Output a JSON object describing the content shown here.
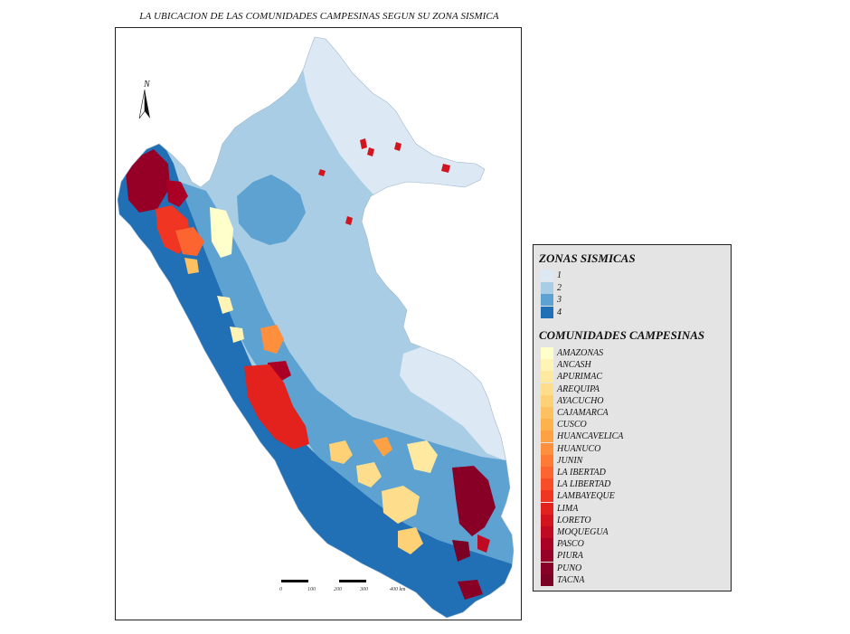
{
  "map": {
    "title": "LA UBICACION DE LAS COMUNIDADES CAMPESINAS SEGUN SU ZONA SISMICA",
    "north_label": "N",
    "scale_labels": [
      "0",
      "100",
      "200",
      "300",
      "400 km"
    ]
  },
  "legend": {
    "zones_title": "ZONAS SISMICAS",
    "zones": [
      {
        "label": "1",
        "color": "#dce8f4"
      },
      {
        "label": "2",
        "color": "#a9cde4"
      },
      {
        "label": "3",
        "color": "#5da2d0"
      },
      {
        "label": "4",
        "color": "#2170b6"
      }
    ],
    "communities_title": "COMUNIDADES CAMPESINAS",
    "communities": [
      {
        "label": "AMAZONAS",
        "color": "#ffffcc"
      },
      {
        "label": "ANCASH",
        "color": "#fff3b5"
      },
      {
        "label": "APURIMAC",
        "color": "#ffe9a0"
      },
      {
        "label": "AREQUIPA",
        "color": "#fede8c"
      },
      {
        "label": "AYACUCHO",
        "color": "#fed176"
      },
      {
        "label": "CAJAMARCA",
        "color": "#fec161"
      },
      {
        "label": "CUSCO",
        "color": "#feb24c"
      },
      {
        "label": "HUANCAVELICA",
        "color": "#fea145"
      },
      {
        "label": "HUANUCO",
        "color": "#fd8f3d"
      },
      {
        "label": "JUNIN",
        "color": "#fd7b37"
      },
      {
        "label": "LA IBERTAD",
        "color": "#fc6530"
      },
      {
        "label": "LA LIBERTAD",
        "color": "#f84d29"
      },
      {
        "label": "LAMBAYEQUE",
        "color": "#f03523"
      },
      {
        "label": "LIMA",
        "color": "#e3211d"
      },
      {
        "label": "LORETO",
        "color": "#d2141f"
      },
      {
        "label": "MOQUEGUA",
        "color": "#c00a23"
      },
      {
        "label": "PASCO",
        "color": "#ab0026"
      },
      {
        "label": "PIURA",
        "color": "#960026"
      },
      {
        "label": "PUNO",
        "color": "#880026"
      },
      {
        "label": "TACNA",
        "color": "#7a0026"
      }
    ]
  }
}
